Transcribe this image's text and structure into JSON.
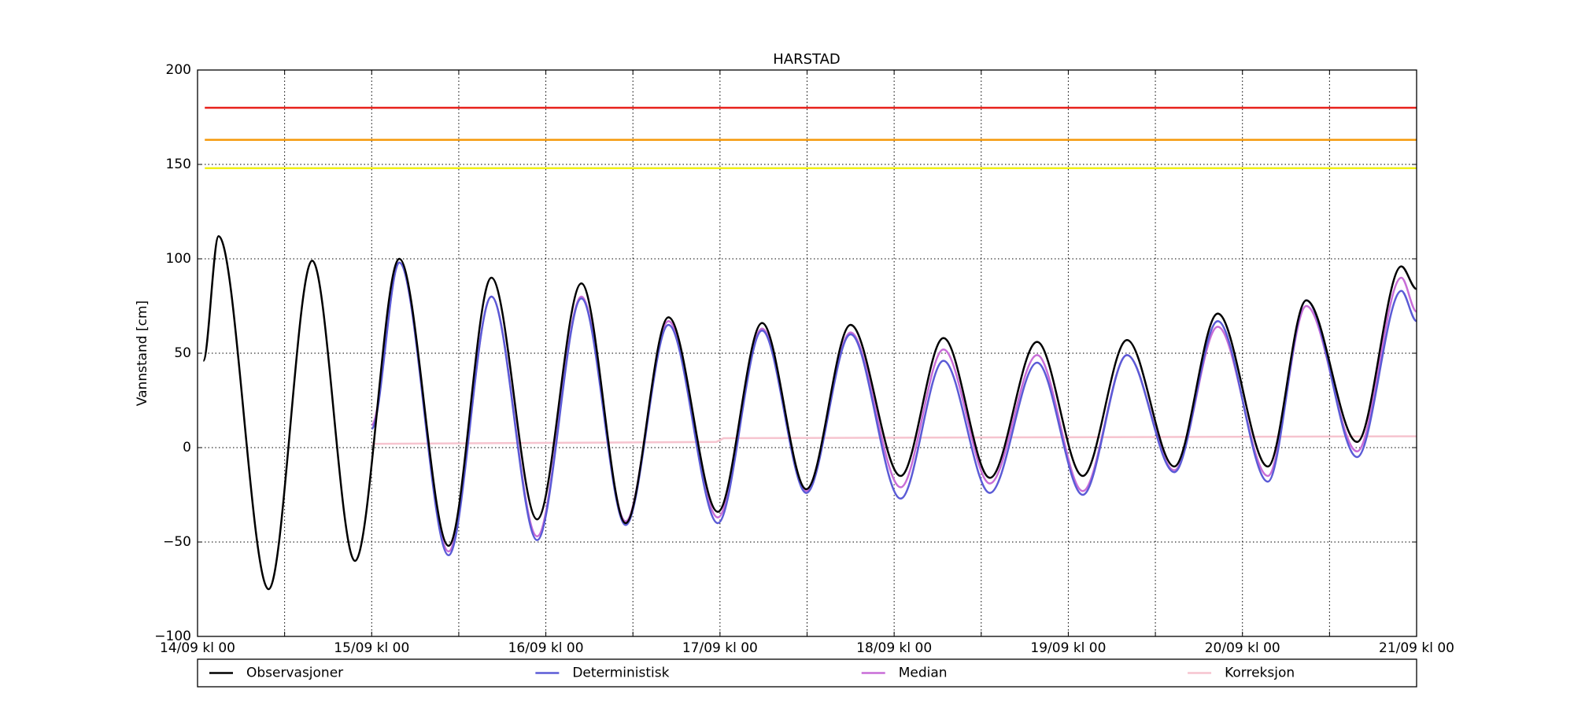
{
  "chart_data": {
    "type": "line",
    "title": "HARSTAD",
    "y_label": "Vannstand [cm]",
    "xlim": [
      0,
      168
    ],
    "ylim": [
      -100,
      200
    ],
    "xticks": [
      {
        "value": 0,
        "label": "14/09 kl 00"
      },
      {
        "value": 24,
        "label": "15/09 kl 00"
      },
      {
        "value": 48,
        "label": "16/09 kl 00"
      },
      {
        "value": 72,
        "label": "17/09 kl 00"
      },
      {
        "value": 96,
        "label": "18/09 kl 00"
      },
      {
        "value": 120,
        "label": "19/09 kl 00"
      },
      {
        "value": 144,
        "label": "20/09 kl 00"
      },
      {
        "value": 168,
        "label": "21/09 kl 00"
      }
    ],
    "xticks_minor": [
      12,
      36,
      60,
      84,
      108,
      132,
      156
    ],
    "yticks": [
      {
        "value": -100,
        "label": "−100"
      },
      {
        "value": -50,
        "label": "−50"
      },
      0,
      50,
      100,
      150,
      200
    ],
    "grid": true,
    "thresholds": [
      {
        "value": 180,
        "color": "#e8211c"
      },
      {
        "value": 163,
        "color": "#f59a0c"
      },
      {
        "value": 148,
        "color": "#f0f018"
      }
    ],
    "series": [
      {
        "name": "Observasjoner",
        "color": "#000000",
        "smooth": true,
        "x": [
          0.8,
          2.9,
          9.8,
          15.8,
          21.7,
          27.8,
          34.6,
          40.5,
          46.8,
          52.9,
          59,
          64.9,
          71.7,
          77.8,
          83.9,
          90,
          96.9,
          102.8,
          109.2,
          115.7,
          122,
          128.1,
          134.6,
          140.6,
          147.5,
          152.8,
          159.8,
          165.9,
          168
        ],
        "values": [
          46,
          112,
          -75,
          99,
          -60,
          100,
          -52,
          90,
          -38,
          87,
          -40,
          69,
          -34,
          66,
          -22,
          65,
          -15,
          58,
          -16,
          56,
          -15,
          57,
          -10,
          71,
          -10,
          78,
          3,
          96,
          84
        ]
      },
      {
        "name": "Deterministisk",
        "color": "#5b5bd6",
        "smooth": true,
        "x": [
          24,
          27.8,
          34.6,
          40.5,
          46.8,
          52.9,
          59,
          64.9,
          71.7,
          77.8,
          83.9,
          90,
          96.9,
          102.8,
          109.2,
          115.7,
          122,
          128.1,
          134.6,
          140.6,
          147.5,
          152.8,
          159.8,
          165.9,
          168
        ],
        "values": [
          10,
          98,
          -57,
          80,
          -49,
          79,
          -41,
          65,
          -40,
          62,
          -24,
          60,
          -27,
          46,
          -24,
          45,
          -25,
          49,
          -13,
          67,
          -18,
          78,
          -5,
          83,
          67
        ]
      },
      {
        "name": "Median",
        "color": "#c86dd7",
        "smooth": true,
        "x": [
          24,
          27.8,
          34.6,
          40.5,
          46.8,
          52.9,
          59,
          64.9,
          71.7,
          77.8,
          83.9,
          90,
          96.9,
          102.8,
          109.2,
          115.7,
          122,
          128.1,
          134.6,
          140.6,
          147.5,
          152.8,
          159.8,
          165.9,
          168
        ],
        "values": [
          12,
          98,
          -55,
          80,
          -47,
          80,
          -39,
          67,
          -37,
          63,
          -23,
          61,
          -21,
          52,
          -19,
          49,
          -23,
          49,
          -12,
          64,
          -15,
          75,
          -2,
          90,
          72
        ]
      },
      {
        "name": "Korreksjon",
        "color": "#f6c4cf",
        "smooth": false,
        "x": [
          24,
          71.5,
          72.5,
          168
        ],
        "values": [
          2,
          3,
          5,
          6
        ]
      }
    ]
  }
}
